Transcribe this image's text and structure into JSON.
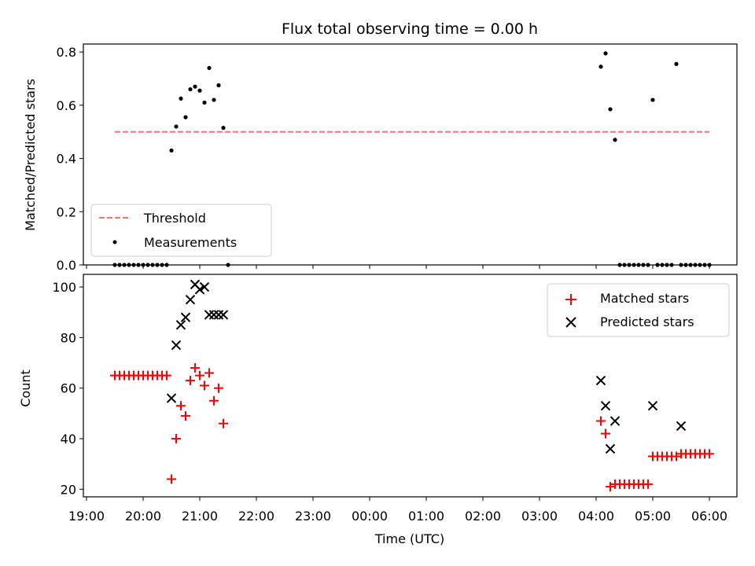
{
  "chart_data": [
    {
      "type": "scatter",
      "title": "Flux total observing time = 0.00 h",
      "xlabel": "",
      "ylabel": "Matched/Predicted stars",
      "ylim": [
        0,
        0.83
      ],
      "yticks": [
        0.0,
        0.2,
        0.4,
        0.6,
        0.8
      ],
      "ytick_labels": [
        "0.0",
        "0.2",
        "0.4",
        "0.6",
        "0.8"
      ],
      "grid": false,
      "legend_position": "lower-left",
      "threshold": {
        "name": "Threshold",
        "value": 0.5,
        "x_start": "19:30",
        "x_end": "06:00",
        "color": "#ff7070"
      },
      "series": [
        {
          "name": "Measurements",
          "color": "#000000",
          "x": [
            "19:30",
            "19:35",
            "19:40",
            "19:45",
            "19:50",
            "19:55",
            "20:00",
            "20:05",
            "20:10",
            "20:15",
            "20:20",
            "20:25",
            "20:30",
            "20:35",
            "20:40",
            "20:45",
            "20:50",
            "20:55",
            "21:00",
            "21:05",
            "21:10",
            "21:15",
            "21:20",
            "21:25",
            "21:30",
            "04:05",
            "04:10",
            "04:15",
            "04:20",
            "04:25",
            "04:30",
            "04:35",
            "04:40",
            "04:45",
            "04:50",
            "04:55",
            "05:00",
            "05:05",
            "05:10",
            "05:15",
            "05:20",
            "05:25",
            "05:30",
            "05:35",
            "05:40",
            "05:45",
            "05:50",
            "05:55",
            "06:00"
          ],
          "y": [
            0,
            0,
            0,
            0,
            0,
            0,
            0,
            0,
            0,
            0,
            0,
            0,
            0.43,
            0.52,
            0.625,
            0.555,
            0.66,
            0.67,
            0.655,
            0.61,
            0.74,
            0.62,
            0.675,
            0.515,
            0,
            0.745,
            0.795,
            0.585,
            0.47,
            0,
            0,
            0,
            0,
            0,
            0,
            0,
            0.62,
            0,
            0,
            0,
            0,
            0.755,
            0,
            0,
            0,
            0,
            0,
            0,
            0
          ]
        }
      ]
    },
    {
      "type": "scatter",
      "title": "",
      "xlabel": "Time (UTC)",
      "ylabel": "Count",
      "ylim": [
        17,
        105
      ],
      "yticks": [
        20,
        40,
        60,
        80,
        100
      ],
      "ytick_labels": [
        "20",
        "40",
        "60",
        "80",
        "100"
      ],
      "xticks": [
        "19:00",
        "20:00",
        "21:00",
        "22:00",
        "23:00",
        "00:00",
        "01:00",
        "02:00",
        "03:00",
        "04:00",
        "05:00",
        "06:00"
      ],
      "grid": false,
      "legend_position": "top-right",
      "series": [
        {
          "name": "Matched stars",
          "color": "#ff0000",
          "marker": "plus",
          "x": [
            "19:30",
            "19:35",
            "19:40",
            "19:45",
            "19:50",
            "19:55",
            "20:00",
            "20:05",
            "20:10",
            "20:15",
            "20:20",
            "20:25",
            "20:30",
            "20:35",
            "20:40",
            "20:45",
            "20:50",
            "20:55",
            "21:00",
            "21:05",
            "21:10",
            "21:15",
            "21:20",
            "21:25",
            "04:05",
            "04:10",
            "04:15",
            "04:20",
            "04:25",
            "04:30",
            "04:35",
            "04:40",
            "04:45",
            "04:50",
            "04:55",
            "05:00",
            "05:05",
            "05:10",
            "05:15",
            "05:20",
            "05:25",
            "05:30",
            "05:35",
            "05:40",
            "05:45",
            "05:50",
            "05:55",
            "06:00"
          ],
          "y": [
            65,
            65,
            65,
            65,
            65,
            65,
            65,
            65,
            65,
            65,
            65,
            65,
            24,
            40,
            53,
            49,
            63,
            68,
            65,
            61,
            66,
            55,
            60,
            46,
            47,
            42,
            21,
            22,
            22,
            22,
            22,
            22,
            22,
            22,
            22,
            33,
            33,
            33,
            33,
            33,
            33,
            34,
            34,
            34,
            34,
            34,
            34,
            34
          ]
        },
        {
          "name": "Predicted stars",
          "color": "#000000",
          "marker": "x",
          "x": [
            "20:30",
            "20:35",
            "20:40",
            "20:45",
            "20:50",
            "20:55",
            "21:00",
            "21:05",
            "21:10",
            "21:15",
            "21:20",
            "21:25",
            "04:05",
            "04:10",
            "04:15",
            "04:20",
            "05:00",
            "05:30"
          ],
          "y": [
            56,
            77,
            85,
            88,
            95,
            101,
            99,
            100,
            89,
            89,
            89,
            89,
            63,
            53,
            36,
            47,
            53,
            45
          ]
        }
      ]
    }
  ]
}
